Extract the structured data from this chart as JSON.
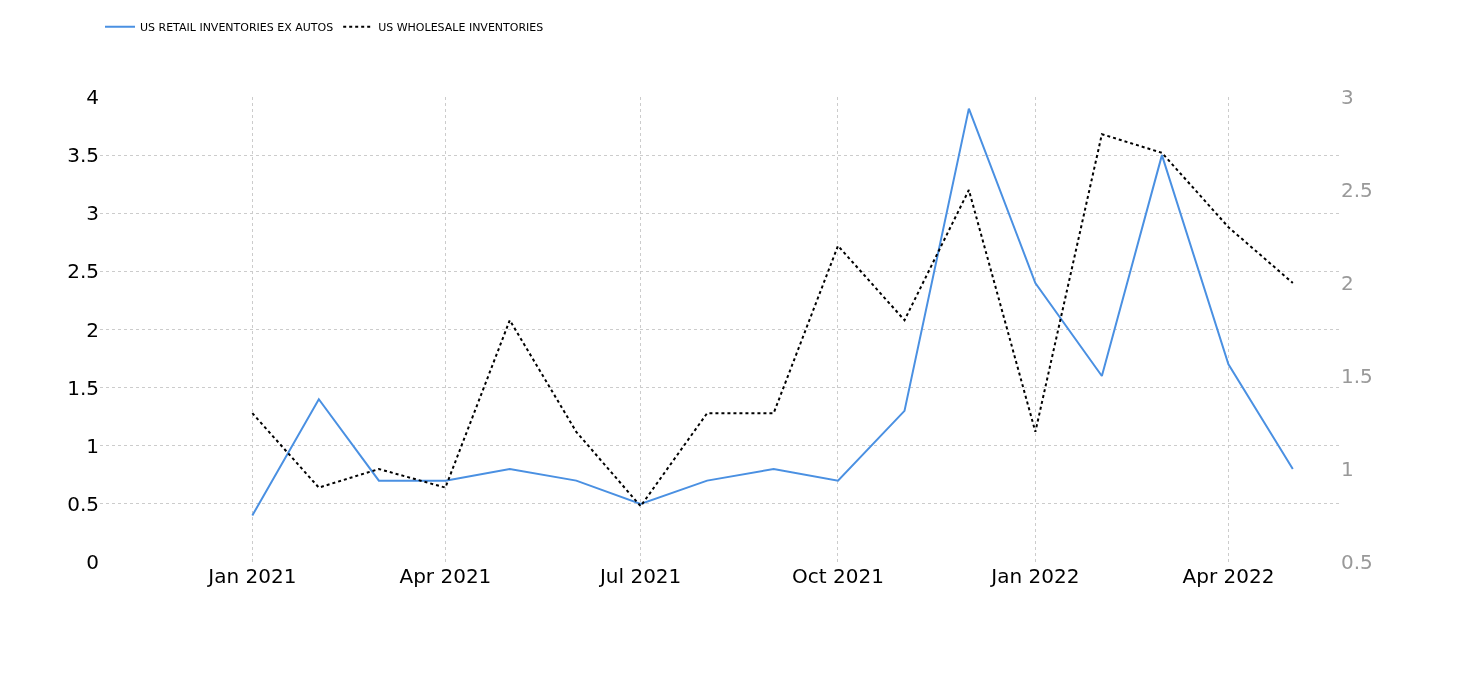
{
  "chart_data": {
    "type": "line",
    "x": [
      "2021-01",
      "2021-02",
      "2021-03",
      "2021-04",
      "2021-05",
      "2021-06",
      "2021-07",
      "2021-08",
      "2021-09",
      "2021-10",
      "2021-11",
      "2021-12",
      "2022-01",
      "2022-02",
      "2022-03",
      "2022-04",
      "2022-05"
    ],
    "series": [
      {
        "name": "US RETAIL INVENTORIES EX AUTOS",
        "color": "#4a90e2",
        "line_style": "solid",
        "values": [
          0.4,
          1.4,
          0.7,
          0.7,
          0.8,
          0.7,
          0.5,
          0.7,
          0.8,
          0.7,
          1.3,
          3.9,
          2.4,
          1.6,
          3.5,
          1.7,
          0.8
        ]
      },
      {
        "name": "US WHOLESALE INVENTORIES",
        "color": "#000000",
        "line_style": "dotted",
        "axis": "y2",
        "values": [
          1.3,
          0.9,
          1.0,
          0.9,
          1.8,
          1.2,
          0.8,
          1.3,
          1.3,
          2.2,
          1.8,
          2.5,
          1.2,
          2.8,
          2.7,
          2.3,
          2.0
        ]
      }
    ],
    "xlim": [
      "2020-10-22",
      "2022-05-23"
    ],
    "xticks": [
      {
        "value": "2021-01-01",
        "label": "Jan 2021"
      },
      {
        "value": "2021-04-01",
        "label": "Apr 2021"
      },
      {
        "value": "2021-07-01",
        "label": "Jul 2021"
      },
      {
        "value": "2021-10-01",
        "label": "Oct 2021"
      },
      {
        "value": "2022-01-01",
        "label": "Jan 2022"
      },
      {
        "value": "2022-04-01",
        "label": "Apr 2022"
      }
    ],
    "ylim": [
      0,
      4
    ],
    "yticks": [
      0,
      0.5,
      1,
      1.5,
      2,
      2.5,
      3,
      3.5,
      4
    ],
    "y2lim": [
      0.5,
      3
    ],
    "y2ticks": [
      0.5,
      1,
      1.5,
      2,
      2.5,
      3
    ],
    "grid": true,
    "legend": "top left",
    "marker": "none"
  }
}
